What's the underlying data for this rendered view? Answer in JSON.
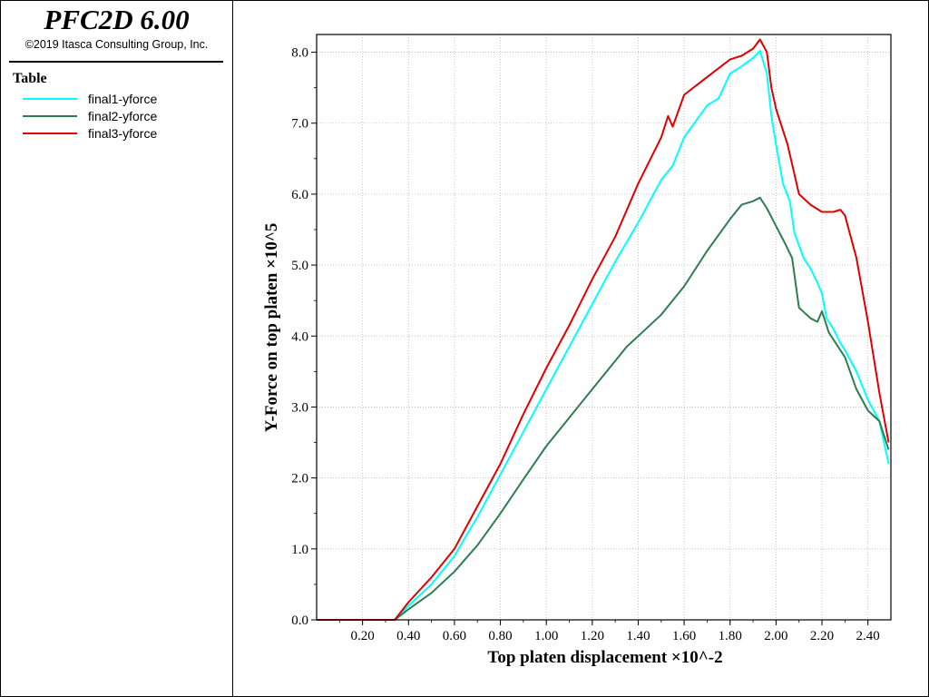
{
  "header": {
    "app_title": "PFC2D 6.00",
    "copyright": "©2019 Itasca Consulting Group, Inc."
  },
  "legend": {
    "heading": "Table",
    "items": [
      {
        "label": "final1-yforce",
        "color": "#00ffff"
      },
      {
        "label": "final2-yforce",
        "color": "#2e7d4f"
      },
      {
        "label": "final3-yforce",
        "color": "#e00000"
      }
    ]
  },
  "chart_data": {
    "type": "line",
    "title": "",
    "xlabel": "Top platen displacement ×10^-2",
    "ylabel": "Y-Force on top platen ×10^5",
    "xlim": [
      0.0,
      2.5
    ],
    "ylim": [
      0.0,
      8.25
    ],
    "x_ticks": [
      0.2,
      0.4,
      0.6,
      0.8,
      1.0,
      1.2,
      1.4,
      1.6,
      1.8,
      2.0,
      2.2,
      2.4
    ],
    "x_tick_labels": [
      "0.20",
      "0.40",
      "0.60",
      "0.80",
      "1.00",
      "1.20",
      "1.40",
      "1.60",
      "1.80",
      "2.00",
      "2.20",
      "2.40"
    ],
    "y_ticks": [
      0,
      1,
      2,
      3,
      4,
      5,
      6,
      7,
      8
    ],
    "y_tick_labels": [
      "0.0",
      "1.0",
      "2.0",
      "3.0",
      "4.0",
      "5.0",
      "6.0",
      "7.0",
      "8.0"
    ],
    "grid": true,
    "legend_position": "left-panel",
    "series": [
      {
        "name": "final1-yforce",
        "color": "#00ffff",
        "x": [
          0.0,
          0.34,
          0.4,
          0.5,
          0.6,
          0.7,
          0.8,
          0.9,
          1.0,
          1.1,
          1.2,
          1.3,
          1.4,
          1.5,
          1.55,
          1.6,
          1.7,
          1.75,
          1.8,
          1.85,
          1.9,
          1.93,
          1.96,
          1.98,
          2.0,
          2.03,
          2.06,
          2.08,
          2.12,
          2.15,
          2.18,
          2.2,
          2.22,
          2.25,
          2.28,
          2.3,
          2.35,
          2.4,
          2.45,
          2.49
        ],
        "y": [
          0.0,
          0.0,
          0.2,
          0.5,
          0.9,
          1.45,
          2.05,
          2.65,
          3.25,
          3.85,
          4.45,
          5.05,
          5.6,
          6.2,
          6.4,
          6.8,
          7.25,
          7.35,
          7.7,
          7.8,
          7.92,
          8.02,
          7.7,
          7.1,
          6.7,
          6.15,
          5.9,
          5.45,
          5.1,
          4.95,
          4.75,
          4.6,
          4.25,
          4.1,
          3.9,
          3.8,
          3.5,
          3.1,
          2.8,
          2.2
        ]
      },
      {
        "name": "final2-yforce",
        "color": "#2e7d4f",
        "x": [
          0.0,
          0.34,
          0.4,
          0.5,
          0.6,
          0.7,
          0.8,
          0.9,
          1.0,
          1.1,
          1.2,
          1.3,
          1.35,
          1.4,
          1.5,
          1.6,
          1.7,
          1.8,
          1.85,
          1.9,
          1.93,
          1.96,
          2.0,
          2.04,
          2.07,
          2.1,
          2.15,
          2.18,
          2.2,
          2.23,
          2.25,
          2.3,
          2.35,
          2.4,
          2.45,
          2.49
        ],
        "y": [
          0.0,
          0.0,
          0.15,
          0.38,
          0.68,
          1.05,
          1.5,
          1.98,
          2.45,
          2.85,
          3.25,
          3.65,
          3.85,
          4.0,
          4.3,
          4.7,
          5.2,
          5.65,
          5.85,
          5.9,
          5.95,
          5.8,
          5.55,
          5.3,
          5.1,
          4.4,
          4.25,
          4.2,
          4.35,
          4.05,
          3.95,
          3.7,
          3.25,
          2.95,
          2.8,
          2.4
        ]
      },
      {
        "name": "final3-yforce",
        "color": "#e00000",
        "x": [
          0.0,
          0.34,
          0.4,
          0.5,
          0.6,
          0.7,
          0.8,
          0.9,
          1.0,
          1.1,
          1.2,
          1.3,
          1.4,
          1.5,
          1.53,
          1.55,
          1.6,
          1.7,
          1.8,
          1.85,
          1.9,
          1.93,
          1.96,
          1.98,
          2.0,
          2.05,
          2.1,
          2.15,
          2.2,
          2.25,
          2.28,
          2.3,
          2.35,
          2.4,
          2.45,
          2.49
        ],
        "y": [
          0.0,
          0.0,
          0.25,
          0.6,
          1.0,
          1.6,
          2.2,
          2.9,
          3.55,
          4.15,
          4.8,
          5.4,
          6.15,
          6.8,
          7.1,
          6.95,
          7.4,
          7.65,
          7.9,
          7.95,
          8.05,
          8.18,
          8.0,
          7.5,
          7.2,
          6.7,
          6.0,
          5.85,
          5.75,
          5.75,
          5.78,
          5.7,
          5.1,
          4.2,
          3.2,
          2.5
        ]
      }
    ]
  }
}
